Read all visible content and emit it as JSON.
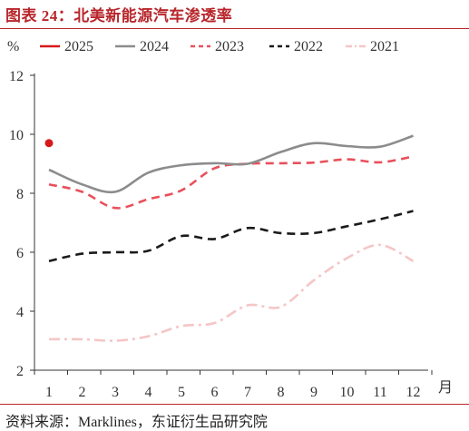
{
  "figure": {
    "title": "图表 24：北美新能源汽车渗透率",
    "source": "资料来源：Marklines，东证衍生品研究院"
  },
  "chart_data": {
    "type": "line",
    "ylabel": "%",
    "xlabel": "月",
    "x": [
      1,
      2,
      3,
      4,
      5,
      6,
      7,
      8,
      9,
      10,
      11,
      12
    ],
    "ylim": [
      2,
      12
    ],
    "yticks": [
      2,
      4,
      6,
      8,
      10,
      12
    ],
    "legend_position": "top",
    "series": [
      {
        "name": "2025",
        "color": "#d7191c",
        "style": "marker",
        "values": [
          9.7,
          null,
          null,
          null,
          null,
          null,
          null,
          null,
          null,
          null,
          null,
          null
        ]
      },
      {
        "name": "2024",
        "color": "#8c8c8c",
        "style": "solid",
        "values": [
          8.8,
          8.3,
          8.05,
          8.7,
          8.95,
          9.02,
          9.0,
          9.4,
          9.7,
          9.6,
          9.58,
          9.95
        ]
      },
      {
        "name": "2023",
        "color": "#e8505b",
        "style": "dashed",
        "values": [
          8.3,
          8.05,
          7.5,
          7.8,
          8.1,
          8.85,
          9.0,
          9.02,
          9.04,
          9.15,
          9.05,
          9.25
        ]
      },
      {
        "name": "2022",
        "color": "#1a1a1a",
        "style": "dashed",
        "values": [
          5.7,
          5.95,
          6.0,
          6.05,
          6.55,
          6.45,
          6.82,
          6.65,
          6.65,
          6.88,
          7.12,
          7.4
        ]
      },
      {
        "name": "2021",
        "color": "#f5c6c6",
        "style": "dashdot",
        "values": [
          3.05,
          3.05,
          3.0,
          3.15,
          3.5,
          3.6,
          4.2,
          4.15,
          5.05,
          5.8,
          6.25,
          5.7
        ]
      }
    ]
  }
}
